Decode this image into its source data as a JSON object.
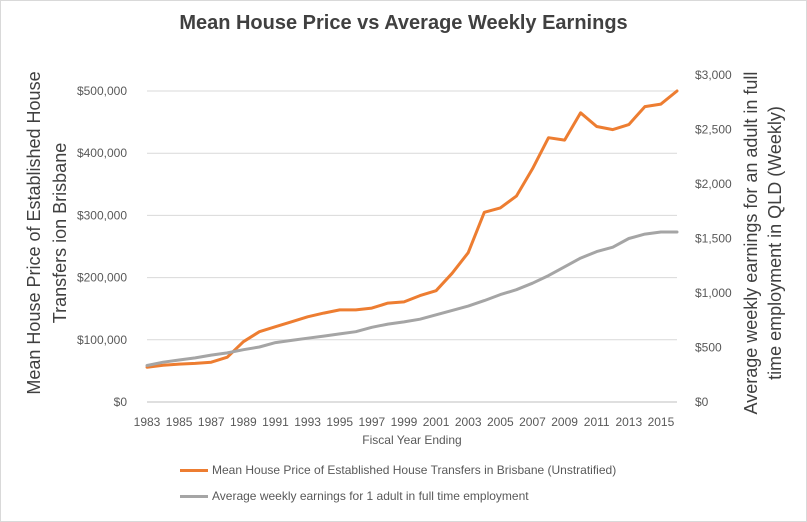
{
  "chart_data": {
    "type": "line",
    "title": "Mean House Price vs Average Weekly Earnings",
    "xlabel": "Fiscal Year Ending",
    "ylabel_left": "Mean House Price of Established House Transfers ion Brisbane",
    "ylabel_left_lines": [
      "Mean House Price of Established House",
      "Transfers ion Brisbane"
    ],
    "ylabel_right": "Average weekly earnings for an adult in full time employment in QLD (Weekly)",
    "ylabel_right_lines": [
      "Average weekly earnings for an adult in full",
      "time employment in QLD (Weekly)"
    ],
    "ylim_left": [
      0,
      500000
    ],
    "ylim_right": [
      0,
      3000
    ],
    "yticks_left": [
      "$0",
      "$100,000",
      "$200,000",
      "$300,000",
      "$400,000",
      "$500,000"
    ],
    "yticks_right": [
      "$0",
      "$500",
      "$1,000",
      "$1,500",
      "$2,000",
      "$2,500",
      "$3,000"
    ],
    "x": [
      1983,
      1984,
      1985,
      1986,
      1987,
      1988,
      1989,
      1990,
      1991,
      1992,
      1993,
      1994,
      1995,
      1996,
      1997,
      1998,
      1999,
      2000,
      2001,
      2002,
      2003,
      2004,
      2005,
      2006,
      2007,
      2008,
      2009,
      2010,
      2011,
      2012,
      2013,
      2014,
      2015,
      2016
    ],
    "xtick_labels": [
      "1983",
      "1985",
      "1987",
      "1989",
      "1991",
      "1993",
      "1995",
      "1997",
      "1999",
      "2001",
      "2003",
      "2005",
      "2007",
      "2009",
      "2011",
      "2013",
      "2015"
    ],
    "grid": true,
    "legend_position": "bottom",
    "series": [
      {
        "name": "Mean House Price of Established House Transfers in Brisbane (Unstratified)",
        "axis": "left",
        "color": "#ed7d31",
        "values": [
          56000,
          59000,
          61000,
          62000,
          64000,
          72000,
          97000,
          113000,
          121000,
          129000,
          137000,
          143000,
          148000,
          148000,
          151000,
          159000,
          161000,
          171000,
          179000,
          207000,
          240000,
          305000,
          312000,
          331000,
          375000,
          425000,
          421000,
          465000,
          443000,
          438000,
          446000,
          475000,
          479000,
          500000
        ]
      },
      {
        "name": "Average weekly earnings for 1 adult in full time employment",
        "axis": "right",
        "color": "#a5a5a5",
        "values": [
          335,
          365,
          385,
          405,
          430,
          450,
          480,
          505,
          545,
          565,
          585,
          605,
          625,
          645,
          685,
          715,
          735,
          760,
          800,
          840,
          880,
          930,
          985,
          1030,
          1090,
          1160,
          1240,
          1320,
          1380,
          1420,
          1500,
          1540,
          1560,
          1560
        ]
      }
    ]
  }
}
